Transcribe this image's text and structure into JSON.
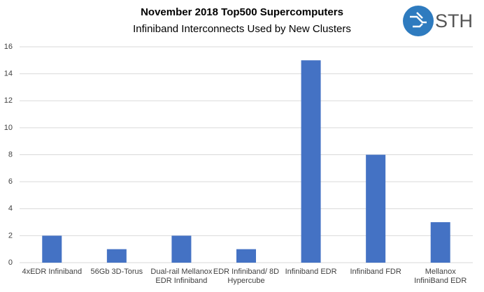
{
  "chart_data": {
    "type": "bar",
    "title": "November 2018 Top500 Supercomputers",
    "subtitle": "Infiniband Interconnects Used by New Clusters",
    "logo": "STH",
    "categories": [
      "4xEDR Infiniband",
      "56Gb 3D-Torus",
      "Dual-rail Mellanox\nEDR Infiniband",
      "EDR Infiniband/ 8D\nHypercube",
      "Infiniband EDR",
      "Infiniband FDR",
      "Mellanox\nInfiniBand EDR"
    ],
    "values": [
      2,
      1,
      2,
      1,
      15,
      8,
      3
    ],
    "color": "#4472c4",
    "ylim": [
      0,
      16
    ],
    "yticks": [
      0,
      2,
      4,
      6,
      8,
      10,
      12,
      14,
      16
    ],
    "grid": true
  }
}
